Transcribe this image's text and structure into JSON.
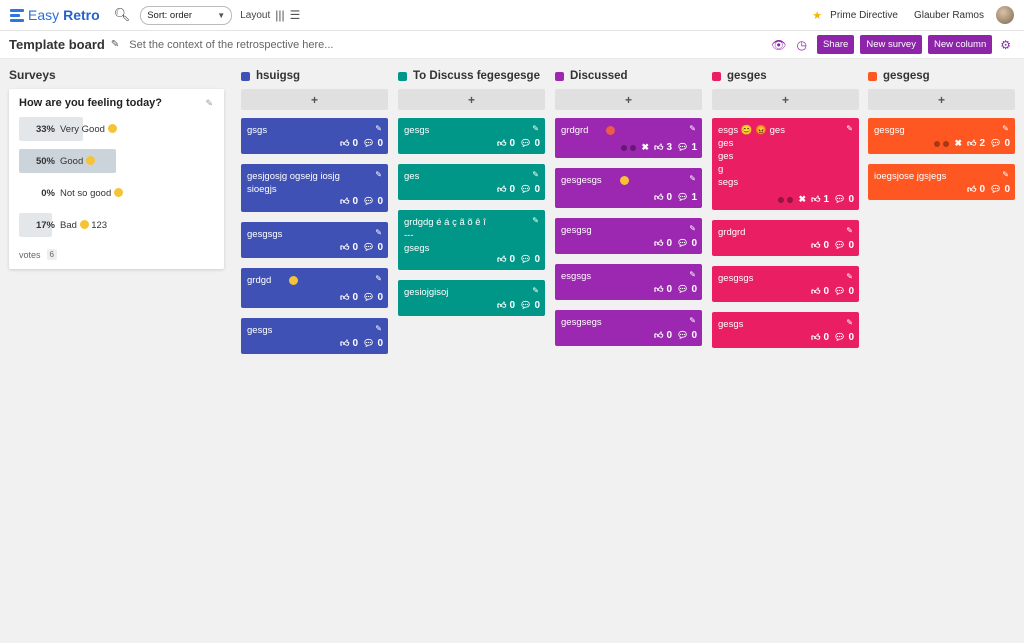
{
  "app": {
    "brand_a": "Easy",
    "brand_b": "Retro",
    "sort_label": "Sort: order",
    "layout_label": "Layout",
    "prime_directive": "Prime Directive",
    "user_name": "Glauber Ramos"
  },
  "board": {
    "title": "Template board",
    "context_placeholder": "Set the context of the retrospective here...",
    "share": "Share",
    "new_survey": "New survey",
    "new_column": "New column"
  },
  "surveys": {
    "section_title": "Surveys",
    "question": "How are you feeling today?",
    "options": [
      {
        "pct": "33%",
        "label": "Very Good",
        "value": 0.33
      },
      {
        "pct": "50%",
        "label": "Good",
        "value": 0.5
      },
      {
        "pct": "0%",
        "label": "Not so good",
        "value": 0
      },
      {
        "pct": "17%",
        "label": "Bad",
        "extra": "123",
        "value": 0.17
      }
    ],
    "votes_label": "votes",
    "votes_count": "6"
  },
  "add_label": "+",
  "columns": [
    {
      "name": "hsuigsg",
      "color": "#3f51b5",
      "cards": [
        {
          "text": "gsgs",
          "likes": "0",
          "comments": "0"
        },
        {
          "text": "gesjgosjg ogsejg iosjg\nsioegjs",
          "likes": "0",
          "comments": "0"
        },
        {
          "text": "gesgsgs",
          "likes": "0",
          "comments": "0"
        },
        {
          "text": "grdgd",
          "emoji": "yellow",
          "likes": "0",
          "comments": "0"
        },
        {
          "text": "gesgs",
          "likes": "0",
          "comments": "0"
        }
      ]
    },
    {
      "name": "To Discuss fegesgesge",
      "color": "#009688",
      "cards": [
        {
          "text": "gesgs",
          "likes": "0",
          "comments": "0"
        },
        {
          "text": "ges",
          "likes": "0",
          "comments": "0"
        },
        {
          "text": "grdgdg é á ç ã õ ê î\n---\ngsegs",
          "likes": "0",
          "comments": "0"
        },
        {
          "text": "gesiojgisoj",
          "likes": "0",
          "comments": "0"
        }
      ]
    },
    {
      "name": "Discussed",
      "color": "#9c27b0",
      "cards": [
        {
          "text": "grdgrd",
          "emoji": "red",
          "dots": true,
          "likes": "3",
          "comments": "1"
        },
        {
          "text": "gesgesgs",
          "emoji": "yellow",
          "likes": "0",
          "comments": "1"
        },
        {
          "text": "gesgsg",
          "likes": "0",
          "comments": "0"
        },
        {
          "text": "esgsgs",
          "likes": "0",
          "comments": "0"
        },
        {
          "text": "gesgsegs",
          "likes": "0",
          "comments": "0"
        }
      ]
    },
    {
      "name": "gesges",
      "color": "#e91e63",
      "cards": [
        {
          "text": "esgs 😊 😡 ges\nges\nges\ng\nsegs",
          "dots": true,
          "likes": "1",
          "comments": "0"
        },
        {
          "text": "grdgrd",
          "likes": "0",
          "comments": "0"
        },
        {
          "text": "gesgsgs",
          "likes": "0",
          "comments": "0"
        },
        {
          "text": "gesgs",
          "likes": "0",
          "comments": "0"
        }
      ]
    },
    {
      "name": "gesgesg",
      "color": "#ff5722",
      "cards": [
        {
          "text": "gesgsg",
          "dots": true,
          "likes": "2",
          "comments": "0"
        },
        {
          "text": "ioegsjose jgsjegs",
          "likes": "0",
          "comments": "0"
        }
      ]
    }
  ]
}
